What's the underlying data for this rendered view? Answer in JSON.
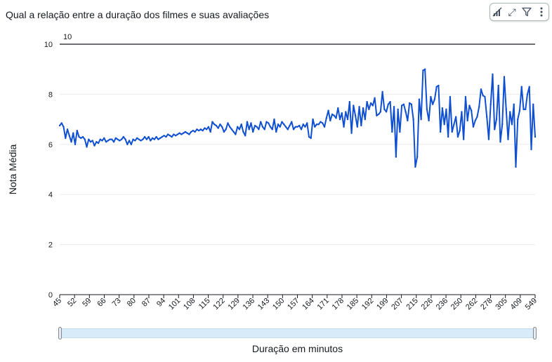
{
  "title": "Qual a relação entre a duração dos filmes e suas avaliações",
  "toolbar": {
    "icons": [
      "chart-type-icon",
      "expand-icon",
      "filter-icon",
      "more-options-icon"
    ],
    "glyph_expand": "⤢",
    "glyph_filter": "⛛",
    "glyph_more": "⋮"
  },
  "colors": {
    "line": "#0f4fd1",
    "grid": "#e9ebed",
    "axis": "#16191f",
    "refline": "#16191f"
  },
  "chart_data": {
    "type": "line",
    "title": "Qual a relação entre a duração dos filmes e suas avaliações",
    "xlabel": "Duração em minutos",
    "ylabel": "Nota Média",
    "ylim": [
      0,
      10
    ],
    "yticks": [
      "0",
      "2",
      "4",
      "6",
      "8",
      "10"
    ],
    "xticks": [
      "45",
      "52",
      "59",
      "66",
      "73",
      "80",
      "87",
      "94",
      "101",
      "108",
      "115",
      "122",
      "129",
      "136",
      "143",
      "150",
      "157",
      "164",
      "171",
      "178",
      "185",
      "192",
      "199",
      "207",
      "215",
      "226",
      "236",
      "250",
      "262",
      "278",
      "305",
      "409",
      "549"
    ],
    "reference_line": {
      "value": 10,
      "label": "10"
    },
    "grid": true,
    "series": [
      {
        "values": [
          6.75,
          6.85,
          6.7,
          6.25,
          6.6,
          6.35,
          6.1,
          6.45,
          6.0,
          6.55,
          6.3,
          6.25,
          6.3,
          6.2,
          5.9,
          6.2,
          6.1,
          6.15,
          5.95,
          6.1,
          6.05,
          6.2,
          6.15,
          6.25,
          6.1,
          6.15,
          6.2,
          6.2,
          6.1,
          6.25,
          6.2,
          6.15,
          6.2,
          6.3,
          6.2,
          6.0,
          6.15,
          6.0,
          6.2,
          6.15,
          6.25,
          6.2,
          6.15,
          6.2,
          6.3,
          6.2,
          6.3,
          6.15,
          6.25,
          6.2,
          6.3,
          6.2,
          6.25,
          6.3,
          6.35,
          6.3,
          6.4,
          6.35,
          6.3,
          6.4,
          6.35,
          6.4,
          6.45,
          6.4,
          6.45,
          6.5,
          6.45,
          6.4,
          6.5,
          6.55,
          6.5,
          6.6,
          6.55,
          6.6,
          6.55,
          6.65,
          6.6,
          6.7,
          6.5,
          6.9,
          6.8,
          6.75,
          6.65,
          6.8,
          6.7,
          6.5,
          6.6,
          6.85,
          6.7,
          6.6,
          6.5,
          6.4,
          6.7,
          6.6,
          6.8,
          6.5,
          6.35,
          6.9,
          6.6,
          6.85,
          6.5,
          6.75,
          6.7,
          6.6,
          6.9,
          6.7,
          6.6,
          6.9,
          6.85,
          6.7,
          6.6,
          7.0,
          6.5,
          6.8,
          6.7,
          6.9,
          6.8,
          6.7,
          6.6,
          6.75,
          6.9,
          6.6,
          6.7,
          6.7,
          6.75,
          6.6,
          6.8,
          6.7,
          6.85,
          6.3,
          6.25,
          7.0,
          6.7,
          6.8,
          6.8,
          6.9,
          6.85,
          6.7,
          7.05,
          7.35,
          6.95,
          7.2,
          7.15,
          7.05,
          7.45,
          7.0,
          7.25,
          6.7,
          7.3,
          7.0,
          7.7,
          6.45,
          7.55,
          7.15,
          6.7,
          7.5,
          6.75,
          7.45,
          7.0,
          7.7,
          7.4,
          7.65,
          7.55,
          7.85,
          7.15,
          7.2,
          7.3,
          8.1,
          7.4,
          7.3,
          7.6,
          7.7,
          6.5,
          7.5,
          5.5,
          7.4,
          6.5,
          7.55,
          7.6,
          7.3,
          6.95,
          7.65,
          7.6,
          7.0,
          5.1,
          5.5,
          7.8,
          7.0,
          8.95,
          9.0,
          7.4,
          6.95,
          7.9,
          7.6,
          7.8,
          8.3,
          8.35,
          6.5,
          7.45,
          6.8,
          7.4,
          6.3,
          7.9,
          6.5,
          6.8,
          7.1,
          6.3,
          6.55,
          7.3,
          6.2,
          7.9,
          6.95,
          7.55,
          7.35,
          6.7,
          6.95,
          7.1,
          7.5,
          8.2,
          7.95,
          7.9,
          7.1,
          6.2,
          7.6,
          8.8,
          6.6,
          7.0,
          8.35,
          6.1,
          6.8,
          8.7,
          7.4,
          6.2,
          7.3,
          6.8,
          7.6,
          5.1,
          7.0,
          7.35,
          8.3,
          7.4,
          7.4,
          8.0,
          8.3,
          5.8,
          7.6,
          6.3
        ]
      }
    ]
  },
  "scrollbar": {
    "start": 0,
    "end": 1
  }
}
